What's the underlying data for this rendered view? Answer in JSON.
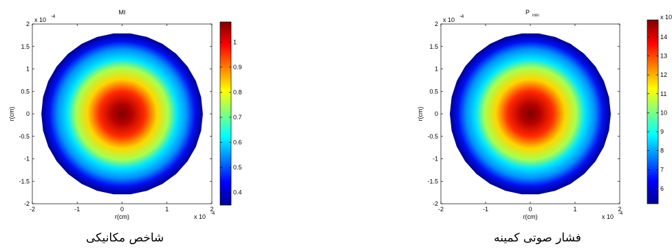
{
  "chart_data": [
    {
      "type": "heatmap",
      "title": "MI",
      "xlabel": "r(cm)",
      "ylabel": "r(cm)",
      "x_exponent_label": "x 10",
      "x_exponent": "-4",
      "y_exponent_label": "x 10",
      "y_exponent": "-4",
      "xlim": [
        -2,
        2
      ],
      "ylim": [
        -2,
        2
      ],
      "x_ticks": [
        "-2",
        "-1",
        "0",
        "1",
        "2"
      ],
      "y_ticks": [
        "2",
        "1.5",
        "1",
        "0.5",
        "0",
        "-0.5",
        "-1",
        "-1.5",
        "-2"
      ],
      "domain_radius": 1.8,
      "colormap": "jet",
      "color_range": [
        0.35,
        1.08
      ],
      "colorbar_ticks": [
        "1",
        "0.9",
        "0.8",
        "0.7",
        "0.6",
        "0.5",
        "0.4"
      ],
      "caption": "شاخص مکانیکی"
    },
    {
      "type": "heatmap",
      "title_main": "P",
      "title_sub": "min",
      "xlabel": "r(cm)",
      "ylabel": "r(cm)",
      "x_exponent_label": "x 10",
      "x_exponent": "-4",
      "y_exponent_label": "x 10",
      "y_exponent": "-4",
      "xlim": [
        -2,
        2
      ],
      "ylim": [
        -2,
        2
      ],
      "x_ticks": [
        "-2",
        "-1",
        "0",
        "1",
        "2"
      ],
      "y_ticks": [
        "2",
        "1.5",
        "1",
        "0.5",
        "0",
        "-0.5",
        "-1",
        "-1.5",
        "-2"
      ],
      "domain_radius": 1.8,
      "colormap": "jet",
      "color_range": [
        5.2,
        14.9
      ],
      "colorbar_exponent_label": "x 10",
      "colorbar_ticks": [
        "14",
        "13",
        "12",
        "11",
        "10",
        "9",
        "8",
        "7",
        "6"
      ],
      "caption": "فشار صوتی کمینه"
    }
  ]
}
